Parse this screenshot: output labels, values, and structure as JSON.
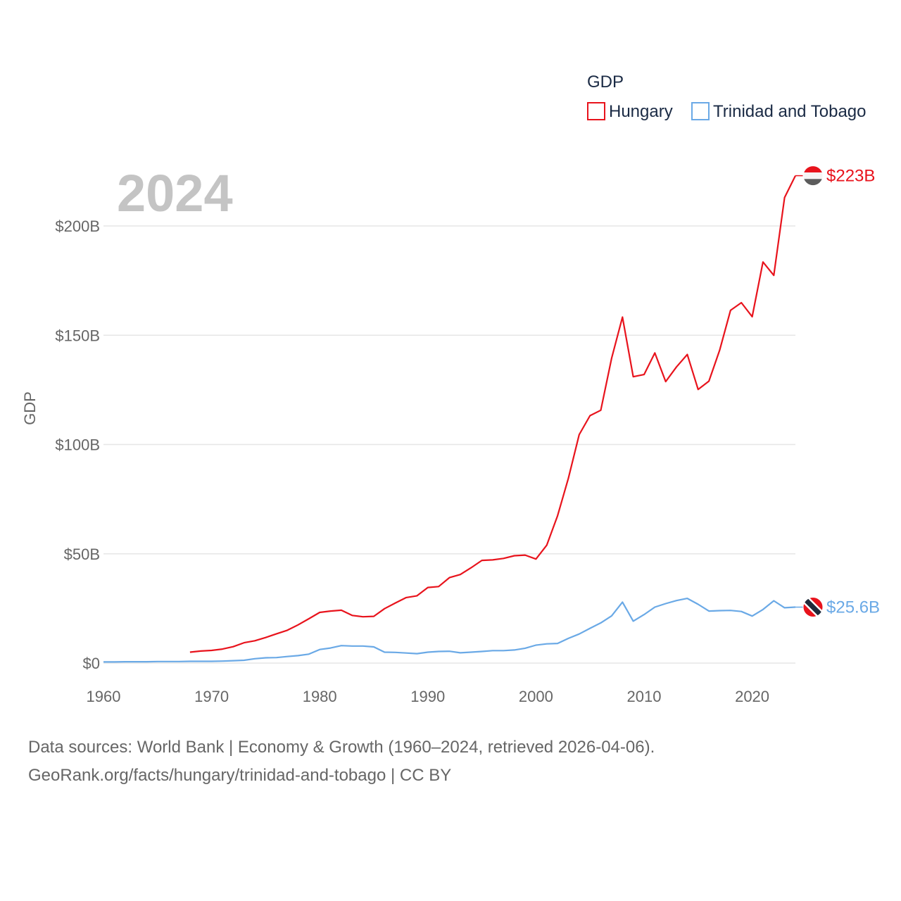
{
  "legend": {
    "title": "GDP"
  },
  "watermark": {
    "year": "2024"
  },
  "source": {
    "line1": "Data sources: World Bank | Economy & Growth (1960–2024, retrieved 2026-04-06).",
    "line2": "GeoRank.org/facts/hungary/trinidad-and-tobago | CC BY"
  },
  "chart_data": {
    "type": "line",
    "title": "",
    "xlabel": "",
    "ylabel": "GDP",
    "xlim": [
      1960,
      2024
    ],
    "ylim": [
      0,
      200
    ],
    "y_unit": "billion USD",
    "x_ticks": [
      1960,
      1970,
      1980,
      1990,
      2000,
      2010,
      2020
    ],
    "x_tick_labels": [
      "1960",
      "1970",
      "1980",
      "1990",
      "2000",
      "2010",
      "2020"
    ],
    "y_ticks": [
      0,
      50,
      100,
      150,
      200
    ],
    "y_tick_labels": [
      "$0",
      "$50B",
      "$100B",
      "$150B",
      "$200B"
    ],
    "grid": true,
    "legend_position": "top-right",
    "series": [
      {
        "name": "Hungary",
        "color": "#e8131c",
        "end_label": "$223B",
        "flag_icon": "hungary-flag-icon",
        "x": [
          1968,
          1969,
          1970,
          1971,
          1972,
          1973,
          1974,
          1975,
          1976,
          1977,
          1978,
          1979,
          1980,
          1981,
          1982,
          1983,
          1984,
          1985,
          1986,
          1987,
          1988,
          1989,
          1990,
          1991,
          1992,
          1993,
          1994,
          1995,
          1996,
          1997,
          1998,
          1999,
          2000,
          2001,
          2002,
          2003,
          2004,
          2005,
          2006,
          2007,
          2008,
          2009,
          2010,
          2011,
          2012,
          2013,
          2014,
          2015,
          2016,
          2017,
          2018,
          2019,
          2020,
          2021,
          2022,
          2023,
          2024
        ],
        "values": [
          5.0,
          5.5,
          5.8,
          6.4,
          7.5,
          9.3,
          10.2,
          11.7,
          13.4,
          15.0,
          17.5,
          20.3,
          23.2,
          23.8,
          24.2,
          21.8,
          21.2,
          21.4,
          24.9,
          27.5,
          30.0,
          30.8,
          34.6,
          35.0,
          39.1,
          40.5,
          43.6,
          47.0,
          47.2,
          47.9,
          49.1,
          49.4,
          47.6,
          53.9,
          67.4,
          84.6,
          104.5,
          113.2,
          115.7,
          139.5,
          158.3,
          131.0,
          132.0,
          141.9,
          128.8,
          135.5,
          141.2,
          125.2,
          129.0,
          143.3,
          161.4,
          164.9,
          158.5,
          183.5,
          177.4,
          213.0,
          223.0
        ]
      },
      {
        "name": "Trinidad and Tobago",
        "color": "#6aa9e6",
        "end_label": "$25.6B",
        "flag_icon": "trinidad-and-tobago-flag-icon",
        "x": [
          1960,
          1961,
          1962,
          1963,
          1964,
          1965,
          1966,
          1967,
          1968,
          1969,
          1970,
          1971,
          1972,
          1973,
          1974,
          1975,
          1976,
          1977,
          1978,
          1979,
          1980,
          1981,
          1982,
          1983,
          1984,
          1985,
          1986,
          1987,
          1988,
          1989,
          1990,
          1991,
          1992,
          1993,
          1994,
          1995,
          1996,
          1997,
          1998,
          1999,
          2000,
          2001,
          2002,
          2003,
          2004,
          2005,
          2006,
          2007,
          2008,
          2009,
          2010,
          2011,
          2012,
          2013,
          2014,
          2015,
          2016,
          2017,
          2018,
          2019,
          2020,
          2021,
          2022,
          2023,
          2024
        ],
        "values": [
          0.5,
          0.5,
          0.6,
          0.6,
          0.6,
          0.7,
          0.7,
          0.7,
          0.8,
          0.8,
          0.8,
          0.9,
          1.1,
          1.3,
          2.0,
          2.4,
          2.5,
          3.0,
          3.4,
          4.1,
          6.2,
          6.9,
          8.0,
          7.8,
          7.8,
          7.4,
          5.0,
          4.9,
          4.6,
          4.3,
          5.0,
          5.3,
          5.4,
          4.7,
          5.0,
          5.3,
          5.7,
          5.7,
          6.0,
          6.8,
          8.2,
          8.8,
          9.0,
          11.3,
          13.3,
          15.9,
          18.4,
          21.6,
          27.9,
          19.2,
          22.2,
          25.6,
          27.2,
          28.6,
          29.6,
          26.9,
          23.8,
          24.0,
          24.1,
          23.6,
          21.5,
          24.5,
          28.5,
          25.3,
          25.6
        ]
      }
    ]
  }
}
